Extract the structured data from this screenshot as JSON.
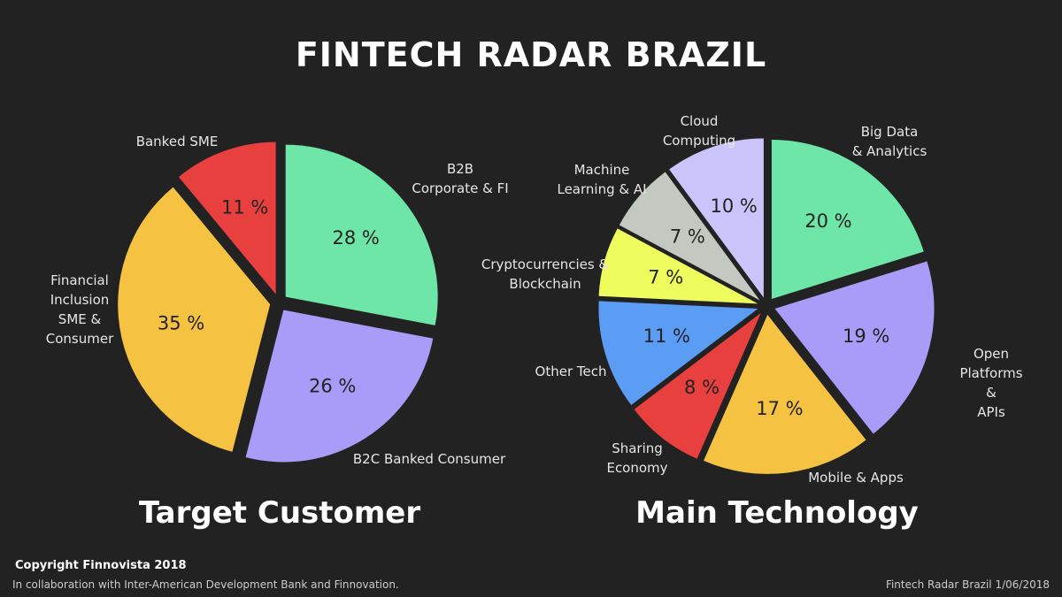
{
  "title": "FINTECH RADAR BRAZIL",
  "chart_data": [
    {
      "type": "pie",
      "title": "Target Customer",
      "categories": [
        "B2B\nCorporate & FI",
        "B2C Banked Consumer",
        "Financial\nInclusion\nSME &\nConsumer",
        "Banked SME"
      ],
      "values": [
        28,
        26,
        35,
        11
      ],
      "value_labels": [
        "28 %",
        "26 %",
        "35 %",
        "11 %"
      ],
      "colors": [
        "#6ee6a8",
        "#a89cf8",
        "#f5c242",
        "#e8403f"
      ]
    },
    {
      "type": "pie",
      "title": "Main Technology",
      "categories": [
        "Big Data\n& Analytics",
        "Open Platforms &\nAPIs",
        "Mobile & Apps",
        "Sharing\nEconomy",
        "Other Tech",
        "Cryptocurrencies &\nBlockchain",
        "Machine\nLearning & AI",
        "Cloud\nComputing"
      ],
      "values": [
        20,
        19,
        17,
        8,
        11,
        7,
        7,
        10
      ],
      "value_labels": [
        "20 %",
        "19 %",
        "17 %",
        "8 %",
        "11 %",
        "7 %",
        "7 %",
        "10 %"
      ],
      "colors": [
        "#6ee6a8",
        "#a89cf8",
        "#f5c242",
        "#e8403f",
        "#5b9cf5",
        "#eefc5d",
        "#c3c8c0",
        "#c9c5fa"
      ]
    }
  ],
  "footer": {
    "copyright": "Copyright Finnovista 2018",
    "collaboration": "In collaboration with Inter-American Development Bank and Finnovation.",
    "edition": "Fintech Radar Brazil 1/06/2018"
  }
}
